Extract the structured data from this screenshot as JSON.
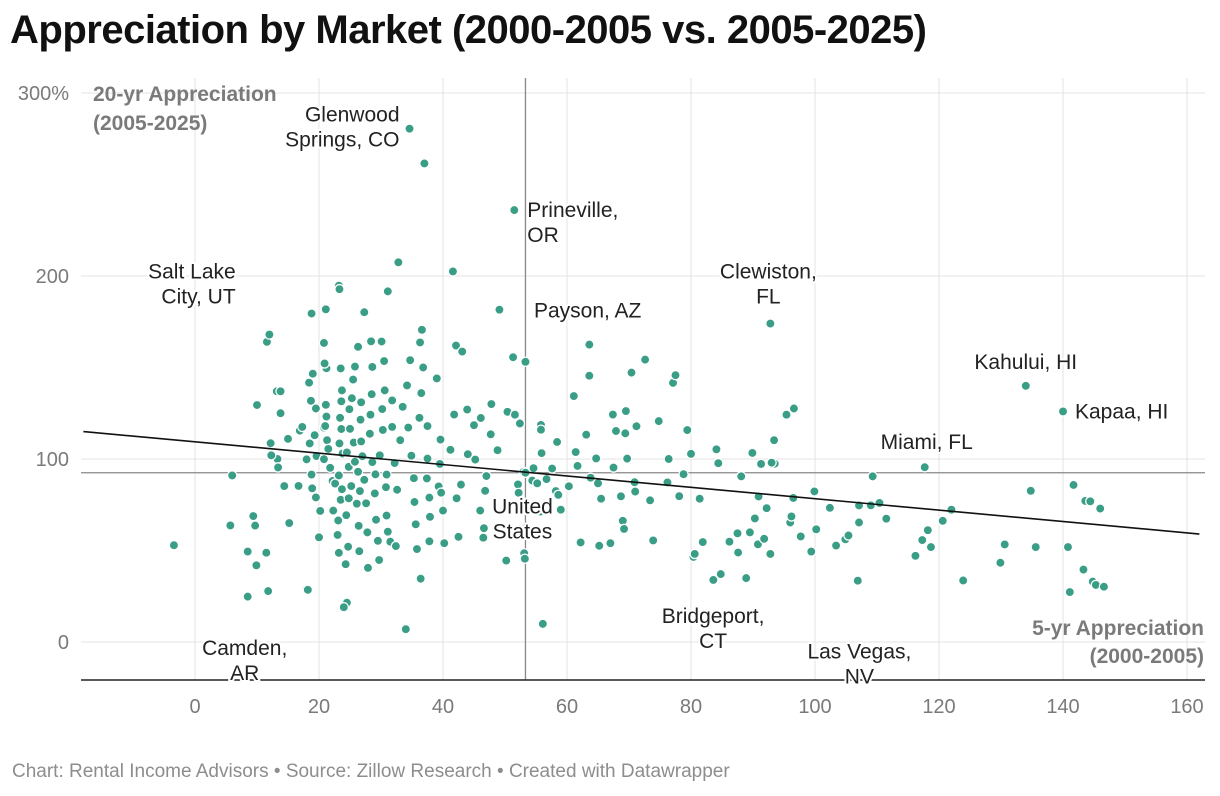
{
  "title": "Appreciation by Market (2000-2005 vs. 2005-2025)",
  "footer": "Chart: Rental Income Advisors • Source: Zillow Research • Created with Datawrapper",
  "colors": {
    "point": "#3a9e87",
    "grid": "#e3e3e3",
    "reference": "#888888",
    "trend": "#111111",
    "axis_label": "#7a7a7a"
  },
  "chart_data": {
    "type": "scatter",
    "title": "Appreciation by Market (2000-2005 vs. 2005-2025)",
    "xlabel": "5-yr Appreciation (2000-2005)",
    "ylabel": "20-yr Appreciation (2005-2025)",
    "xlim": [
      -18,
      162
    ],
    "ylim": [
      -20,
      305
    ],
    "xticks": [
      0,
      20,
      40,
      60,
      80,
      100,
      120,
      140,
      160
    ],
    "xtick_labels": [
      "0",
      "20",
      "40",
      "60",
      "80",
      "100",
      "120",
      "140",
      "160"
    ],
    "yticks": [
      0,
      100,
      200,
      300
    ],
    "ytick_labels": [
      "0",
      "100",
      "200",
      "300%"
    ],
    "grid": true,
    "reference_lines": {
      "x": 53.3,
      "y": 92.5
    },
    "trendline": {
      "x": [
        -18,
        162
      ],
      "y": [
        115,
        59
      ]
    },
    "labeled_points": [
      {
        "label": "Glenwood Springs, CO",
        "lines": [
          "Glenwood",
          "Springs, CO"
        ],
        "x": 34.6,
        "y": 280.5,
        "align": "right"
      },
      {
        "label": "Prineville, OR",
        "lines": [
          "Prineville,",
          "OR"
        ],
        "x": 51.5,
        "y": 236,
        "align": "left"
      },
      {
        "label": "Salt Lake City, UT",
        "lines": [
          "Salt Lake",
          "City, UT"
        ],
        "x": 8.5,
        "y": 196,
        "align": "right"
      },
      {
        "label": "Clewiston, FL",
        "lines": [
          "Clewiston,",
          "FL"
        ],
        "x": 92.8,
        "y": 174,
        "align": "center"
      },
      {
        "label": "Payson, AZ",
        "lines": [
          "Payson, AZ"
        ],
        "x": 63.5,
        "y": 162.5,
        "align": "center"
      },
      {
        "label": "Kahului, HI",
        "lines": [
          "Kahului, HI"
        ],
        "x": 134,
        "y": 140,
        "align": "center"
      },
      {
        "label": "Kapaa, HI",
        "lines": [
          "Kapaa, HI"
        ],
        "x": 140,
        "y": 126,
        "align": "left"
      },
      {
        "label": "Miami, FL",
        "lines": [
          "Miami, FL"
        ],
        "x": 117.7,
        "y": 95.5,
        "align": "center"
      },
      {
        "label": "United States",
        "lines": [
          "United",
          "States"
        ],
        "x": 53.3,
        "y": 92.5,
        "align": "center"
      },
      {
        "label": "Bridgeport, CT",
        "lines": [
          "Bridgeport,",
          "CT"
        ],
        "x": 80.5,
        "y": 46.5,
        "align": "center"
      },
      {
        "label": "Las Vegas, NV",
        "lines": [
          "Las Vegas,",
          "NV"
        ],
        "x": 107,
        "y": 33.5,
        "align": "center"
      },
      {
        "label": "Camden, AR",
        "lines": [
          "Camden,",
          "AR"
        ],
        "x": 8.5,
        "y": 24.5,
        "align": "center"
      }
    ],
    "points": [
      [
        -3.4,
        52.9
      ],
      [
        6,
        91
      ],
      [
        5.7,
        63.7
      ],
      [
        9.4,
        68.8
      ],
      [
        8.5,
        49.4
      ],
      [
        9.7,
        63.6
      ],
      [
        9.9,
        41.9
      ],
      [
        11.8,
        27.8
      ],
      [
        8.5,
        24.8
      ],
      [
        11.5,
        48.8
      ],
      [
        10,
        129.5
      ],
      [
        11.6,
        164
      ],
      [
        12,
        168
      ],
      [
        13.2,
        137
      ],
      [
        13.3,
        100
      ],
      [
        13.8,
        137
      ],
      [
        12.3,
        102
      ],
      [
        12.2,
        108.6
      ],
      [
        13.4,
        95.4
      ],
      [
        14.4,
        85.2
      ],
      [
        13.8,
        125
      ],
      [
        15,
        111
      ],
      [
        16.9,
        115.5
      ],
      [
        15.2,
        65
      ],
      [
        16.7,
        85.3
      ],
      [
        18.8,
        91.5
      ],
      [
        18,
        28.8
      ],
      [
        18.2,
        28.5
      ],
      [
        18,
        99.8
      ],
      [
        18.5,
        108.5
      ],
      [
        17.3,
        117.5
      ],
      [
        18.7,
        131.8
      ],
      [
        18.4,
        141.7
      ],
      [
        19.3,
        113
      ],
      [
        19.5,
        127.6
      ],
      [
        19.6,
        101.6
      ],
      [
        18.9,
        84
      ],
      [
        19.5,
        79
      ],
      [
        20.2,
        71.6
      ],
      [
        20,
        57.2
      ],
      [
        20.8,
        99.9
      ],
      [
        20.8,
        117.2
      ],
      [
        21,
        118
      ],
      [
        21.2,
        149.6
      ],
      [
        20.9,
        152.2
      ],
      [
        19,
        146.6
      ],
      [
        21.1,
        129.6
      ],
      [
        21.2,
        123.2
      ],
      [
        21.3,
        110.3
      ],
      [
        21.5,
        105.5
      ],
      [
        21.8,
        95.2
      ],
      [
        22.2,
        88
      ],
      [
        22.3,
        71.8
      ],
      [
        22.6,
        86.6
      ],
      [
        23,
        58.5
      ],
      [
        23.2,
        48.7
      ],
      [
        23.1,
        66.4
      ],
      [
        23.5,
        77.7
      ],
      [
        23.7,
        83.5
      ],
      [
        23.2,
        91
      ],
      [
        23.8,
        103
      ],
      [
        23.3,
        108.5
      ],
      [
        23.6,
        116.4
      ],
      [
        23.4,
        122.5
      ],
      [
        23.6,
        131.5
      ],
      [
        23.7,
        137.5
      ],
      [
        23.5,
        149.5
      ],
      [
        23.2,
        194.7
      ],
      [
        23.3,
        192.8
      ],
      [
        20.8,
        163.4
      ],
      [
        18.8,
        179.5
      ],
      [
        21.1,
        181.8
      ],
      [
        24.3,
        42.5
      ],
      [
        24.5,
        21.5
      ],
      [
        24,
        19
      ],
      [
        24.7,
        52.1
      ],
      [
        24.4,
        69.3
      ],
      [
        24.8,
        78.5
      ],
      [
        25.2,
        85.2
      ],
      [
        24.8,
        95.7
      ],
      [
        24.5,
        103.6
      ],
      [
        25.6,
        109
      ],
      [
        25,
        116.5
      ],
      [
        24.9,
        127.2
      ],
      [
        25.3,
        133.2
      ],
      [
        25.5,
        143.4
      ],
      [
        25.8,
        150.5
      ],
      [
        26.3,
        161.3
      ],
      [
        25.8,
        98.5
      ],
      [
        26.3,
        93
      ],
      [
        26.6,
        82.5
      ],
      [
        26.1,
        75.6
      ],
      [
        26.4,
        63.5
      ],
      [
        26.5,
        49.6
      ],
      [
        26.8,
        109.6
      ],
      [
        26.7,
        121.5
      ],
      [
        26.8,
        131
      ],
      [
        27,
        101.5
      ],
      [
        27.3,
        88.6
      ],
      [
        27.6,
        75.8
      ],
      [
        27.8,
        59.9
      ],
      [
        27.9,
        40.5
      ],
      [
        27.3,
        180.2
      ],
      [
        28.2,
        113.8
      ],
      [
        28.3,
        124.2
      ],
      [
        28.5,
        135.4
      ],
      [
        28.6,
        150.3
      ],
      [
        28.4,
        164.3
      ],
      [
        28.6,
        98.3
      ],
      [
        29.1,
        91.6
      ],
      [
        29,
        81.2
      ],
      [
        29.2,
        66.8
      ],
      [
        29.5,
        55.3
      ],
      [
        29.7,
        44.8
      ],
      [
        29.8,
        102
      ],
      [
        30.3,
        115.9
      ],
      [
        30.2,
        127.3
      ],
      [
        30.6,
        137.5
      ],
      [
        30.5,
        153.5
      ],
      [
        30.1,
        164.2
      ],
      [
        30.8,
        84.6
      ],
      [
        30.9,
        91.5
      ],
      [
        30.9,
        69.1
      ],
      [
        31.1,
        60.3
      ],
      [
        31.5,
        54.8
      ],
      [
        31.8,
        117.5
      ],
      [
        31.8,
        132
      ],
      [
        32.2,
        97.8
      ],
      [
        32.6,
        83.2
      ],
      [
        32.4,
        52.4
      ],
      [
        32.8,
        207.5
      ],
      [
        31.1,
        191.6
      ],
      [
        33.1,
        110.3
      ],
      [
        33.5,
        128.5
      ],
      [
        34.2,
        140.2
      ],
      [
        34.7,
        154
      ],
      [
        34.4,
        117.2
      ],
      [
        34.9,
        101.8
      ],
      [
        35.3,
        89.5
      ],
      [
        35.4,
        76.5
      ],
      [
        35.6,
        64.3
      ],
      [
        35.8,
        50.8
      ],
      [
        34,
        7
      ],
      [
        34.6,
        280.5
      ],
      [
        37,
        261.5
      ],
      [
        36.2,
        122.5
      ],
      [
        36.5,
        136
      ],
      [
        36.8,
        150
      ],
      [
        36.3,
        163.7
      ],
      [
        36.6,
        170.6
      ],
      [
        37.5,
        100.2
      ],
      [
        37.4,
        89.4
      ],
      [
        37.8,
        78.9
      ],
      [
        37.9,
        68.4
      ],
      [
        37.8,
        55
      ],
      [
        36.4,
        34.6
      ],
      [
        39,
        144
      ],
      [
        37.5,
        118
      ],
      [
        39.6,
        110.6
      ],
      [
        39.5,
        97.3
      ],
      [
        39.3,
        85
      ],
      [
        39.7,
        81.6
      ],
      [
        40,
        71.8
      ],
      [
        40.2,
        54
      ],
      [
        41.8,
        124.3
      ],
      [
        41.2,
        105
      ],
      [
        41.6,
        202.5
      ],
      [
        42.1,
        162
      ],
      [
        42.2,
        78.5
      ],
      [
        42.5,
        57.5
      ],
      [
        42.9,
        86
      ],
      [
        43.1,
        158.7
      ],
      [
        43.9,
        127
      ],
      [
        44,
        102.6
      ],
      [
        45.2,
        99.7
      ],
      [
        45,
        118.5
      ],
      [
        46.1,
        122.4
      ],
      [
        46.5,
        57
      ],
      [
        46.6,
        62.2
      ],
      [
        46,
        71.8
      ],
      [
        47,
        90.7
      ],
      [
        46.8,
        82.6
      ],
      [
        47.8,
        130
      ],
      [
        47.7,
        113.5
      ],
      [
        48.8,
        104.8
      ],
      [
        49.1,
        181.6
      ],
      [
        50.2,
        44.5
      ],
      [
        50.4,
        125.8
      ],
      [
        51.6,
        124.2
      ],
      [
        52.1,
        86.1
      ],
      [
        51.3,
        155.6
      ],
      [
        51.5,
        236
      ],
      [
        52.2,
        81.5
      ],
      [
        52.4,
        119.4
      ],
      [
        53,
        93
      ],
      [
        53.3,
        92.5
      ],
      [
        53.1,
        48.5
      ],
      [
        53.2,
        45.5
      ],
      [
        53.3,
        153.1
      ],
      [
        53.4,
        62.4
      ],
      [
        54.4,
        88.2
      ],
      [
        54.6,
        95
      ],
      [
        55.2,
        86.7
      ],
      [
        55.7,
        71.3
      ],
      [
        56.1,
        9.9
      ],
      [
        55.8,
        118.6
      ],
      [
        55.8,
        116
      ],
      [
        55.9,
        103.2
      ],
      [
        56.7,
        89
      ],
      [
        57.6,
        94.8
      ],
      [
        58.2,
        82.5
      ],
      [
        58.4,
        109.3
      ],
      [
        58.6,
        80.4
      ],
      [
        59,
        72.3
      ],
      [
        60.3,
        85.1
      ],
      [
        61.1,
        134.4
      ],
      [
        61.4,
        103.8
      ],
      [
        61.7,
        96.2
      ],
      [
        62.2,
        54.4
      ],
      [
        63.1,
        113.3
      ],
      [
        63.6,
        162.5
      ],
      [
        63.6,
        145.5
      ],
      [
        63.8,
        89.8
      ],
      [
        64.7,
        100.3
      ],
      [
        65,
        86.7
      ],
      [
        65.2,
        52.6
      ],
      [
        65.5,
        78.3
      ],
      [
        67,
        54
      ],
      [
        67.4,
        124.3
      ],
      [
        67.5,
        95.3
      ],
      [
        67.9,
        115.3
      ],
      [
        68.7,
        79.6
      ],
      [
        69,
        66.2
      ],
      [
        69.2,
        61.8
      ],
      [
        69.5,
        126.2
      ],
      [
        69.4,
        114
      ],
      [
        69.7,
        100.2
      ],
      [
        70.4,
        147.2
      ],
      [
        70.9,
        87.3
      ],
      [
        71.2,
        117.9
      ],
      [
        71,
        82.2
      ],
      [
        72.6,
        154.3
      ],
      [
        73.4,
        77.4
      ],
      [
        73.9,
        55.5
      ],
      [
        74.8,
        120.7
      ],
      [
        76.2,
        87.2
      ],
      [
        76.4,
        100
      ],
      [
        77.1,
        141.6
      ],
      [
        77.5,
        145.8
      ],
      [
        78.1,
        79.7
      ],
      [
        78.8,
        91.7
      ],
      [
        79.4,
        115.8
      ],
      [
        80,
        102.8
      ],
      [
        80.4,
        46.5
      ],
      [
        80.6,
        48.1
      ],
      [
        81.4,
        78.3
      ],
      [
        81.9,
        54.6
      ],
      [
        83.6,
        33.9
      ],
      [
        84.1,
        105.3
      ],
      [
        84.4,
        97.7
      ],
      [
        84.8,
        37.1
      ],
      [
        86.2,
        54.8
      ],
      [
        87.5,
        59.4
      ],
      [
        87.6,
        48.9
      ],
      [
        88.1,
        90.5
      ],
      [
        88.9,
        34.9
      ],
      [
        89.5,
        59.9
      ],
      [
        89.9,
        103.3
      ],
      [
        90.3,
        67.5
      ],
      [
        90.8,
        53.4
      ],
      [
        90.9,
        79.5
      ],
      [
        91.3,
        97.3
      ],
      [
        91.8,
        56.4
      ],
      [
        92.2,
        73.1
      ],
      [
        92.8,
        174
      ],
      [
        92.8,
        48.1
      ],
      [
        93.4,
        110.3
      ],
      [
        93.5,
        97.4
      ],
      [
        95.4,
        124.2
      ],
      [
        96,
        65.3
      ],
      [
        96.6,
        127.6
      ],
      [
        96.5,
        78.7
      ],
      [
        96.2,
        68.6
      ],
      [
        97.7,
        57.7
      ],
      [
        99.4,
        49.4
      ],
      [
        99.9,
        82.3
      ],
      [
        100.2,
        61.6
      ],
      [
        102.4,
        73.3
      ],
      [
        103.4,
        52.7
      ],
      [
        104.9,
        56.1
      ],
      [
        105.4,
        58.2
      ],
      [
        106.9,
        33.5
      ],
      [
        107.1,
        65.3
      ],
      [
        107.1,
        74.6
      ],
      [
        109,
        74.7
      ],
      [
        109.3,
        90.5
      ],
      [
        110.4,
        76
      ],
      [
        111.5,
        67.4
      ],
      [
        116.2,
        47.1
      ],
      [
        117.3,
        55.7
      ],
      [
        117.7,
        95.5
      ],
      [
        118.2,
        61.1
      ],
      [
        118.7,
        51.9
      ],
      [
        120.6,
        66.2
      ],
      [
        122,
        72.3
      ],
      [
        123.9,
        33.6
      ],
      [
        129.9,
        43.3
      ],
      [
        130.6,
        53.3
      ],
      [
        134,
        140
      ],
      [
        134.8,
        82.6
      ],
      [
        135.6,
        51.9
      ],
      [
        140,
        126
      ],
      [
        140.8,
        51.9
      ],
      [
        141.1,
        27.3
      ],
      [
        141.7,
        85.8
      ],
      [
        143.3,
        39.6
      ],
      [
        143.6,
        77.1
      ],
      [
        144.4,
        76.9
      ],
      [
        144.8,
        33
      ],
      [
        145.3,
        31.2
      ],
      [
        146,
        72.9
      ],
      [
        146.6,
        30.2
      ],
      [
        93,
        98
      ]
    ]
  }
}
